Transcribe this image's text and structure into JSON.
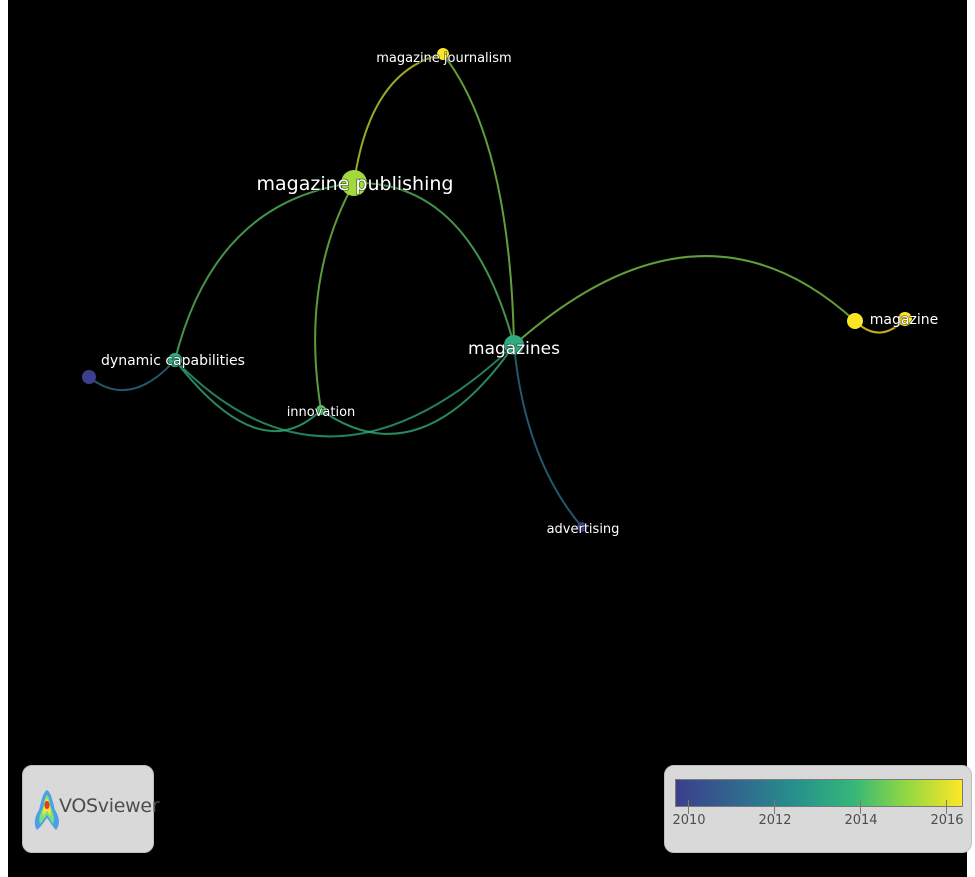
{
  "network": {
    "nodes": [
      {
        "id": "magazine-journalism",
        "label": "magazine journalism",
        "year": 2016
      },
      {
        "id": "magazine-publishing",
        "label": "magazine publishing",
        "year": 2015
      },
      {
        "id": "magazines",
        "label": "magazines",
        "year": 2013.2
      },
      {
        "id": "magazine",
        "label": "magazine",
        "year": 2016
      },
      {
        "id": "magazine-2",
        "label": "",
        "year": 2016
      },
      {
        "id": "dynamic-capabilities",
        "label": "dynamic capabilities",
        "year": 2013.2
      },
      {
        "id": "innovation",
        "label": "innovation",
        "year": 2014
      },
      {
        "id": "advertising",
        "label": "advertising",
        "year": 2010
      },
      {
        "id": "dynamic-capabilities-2",
        "label": "",
        "year": 2010
      }
    ],
    "links": [
      [
        "magazine-publishing",
        "magazine-journalism"
      ],
      [
        "magazine-journalism",
        "magazines"
      ],
      [
        "magazine-publishing",
        "magazines"
      ],
      [
        "magazine-publishing",
        "innovation"
      ],
      [
        "magazine-publishing",
        "dynamic-capabilities"
      ],
      [
        "dynamic-capabilities",
        "innovation"
      ],
      [
        "dynamic-capabilities",
        "magazines"
      ],
      [
        "innovation",
        "magazines"
      ],
      [
        "magazines",
        "magazine"
      ],
      [
        "magazine",
        "magazine-2"
      ],
      [
        "magazines",
        "advertising"
      ],
      [
        "dynamic-capabilities",
        "dynamic-capabilities-2"
      ]
    ]
  },
  "logo": {
    "text": "VOSviewer"
  },
  "legend": {
    "ticks": [
      "2010",
      "2012",
      "2014",
      "2016"
    ],
    "colors": [
      "#3b3f8c",
      "#31688e",
      "#26918c",
      "#35b779",
      "#90d743",
      "#fde725"
    ]
  }
}
